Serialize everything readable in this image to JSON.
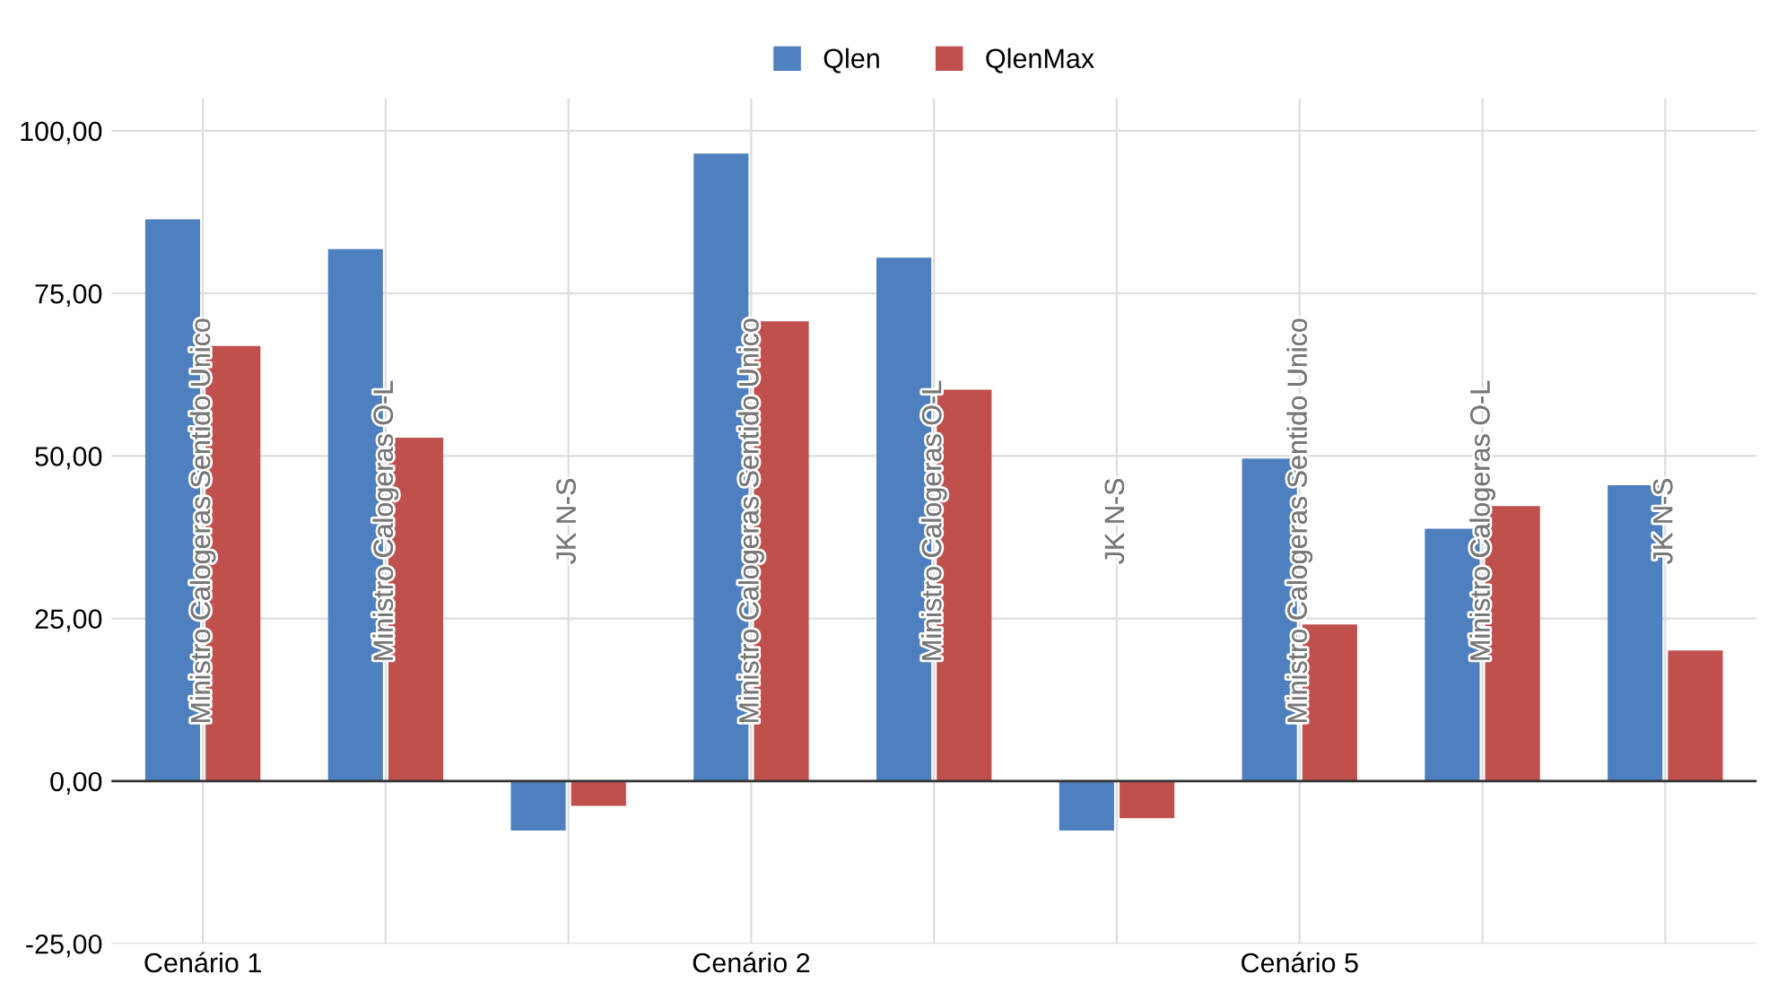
{
  "chart_data": {
    "type": "bar",
    "categories": [
      "Cenário 1",
      null,
      null,
      "Cenário 2",
      null,
      null,
      "Cenário 5",
      null,
      null
    ],
    "series": [
      {
        "name": "Qlen",
        "color": "#4e7fbf",
        "values": [
          86.4,
          81.8,
          -7.6,
          96.5,
          80.5,
          -7.6,
          49.6,
          38.8,
          45.5
        ]
      },
      {
        "name": "QlenMax",
        "color": "#c0504d",
        "values": [
          66.9,
          52.8,
          -3.8,
          70.7,
          60.2,
          -5.7,
          24.1,
          42.3,
          20.1
        ]
      }
    ],
    "annotations": [
      "Ministro Calogeras Sentido Unico",
      "Ministro Calogeras O-L",
      "JK N-S",
      "Ministro Calogeras Sentido Unico",
      "Ministro Calogeras O-L",
      "JK N-S",
      "Ministro Calogeras Sentido Unico",
      "Ministro Calogeras O-L",
      "JK N-S"
    ],
    "ylim": [
      -25,
      105
    ],
    "yticks": [
      {
        "value": -25,
        "label": "-25,00"
      },
      {
        "value": 0,
        "label": "0,00"
      },
      {
        "value": 25,
        "label": "25,00"
      },
      {
        "value": 50,
        "label": "50,00"
      },
      {
        "value": 75,
        "label": "75,00"
      },
      {
        "value": 100,
        "label": "100,00"
      }
    ],
    "grid": true,
    "legend": "top"
  }
}
